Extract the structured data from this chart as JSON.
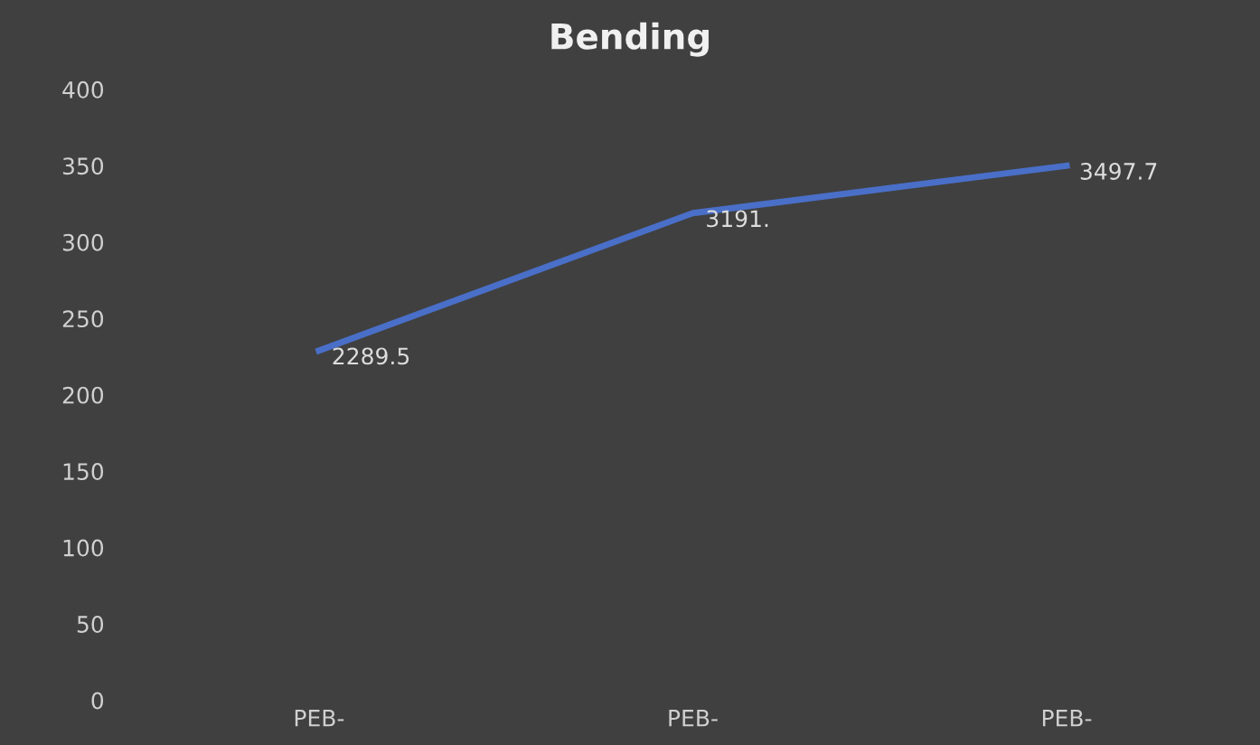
{
  "chart_data": {
    "type": "line",
    "title": "Bending",
    "categories": [
      "PEB-",
      "PEB-",
      "PEB-"
    ],
    "series": [
      {
        "color": "#4a6fc8",
        "values": [
          229,
          319,
          350
        ]
      }
    ],
    "annotations": [
      "2289.5",
      "3191.",
      "3497.7"
    ],
    "ylim": [
      0,
      400
    ],
    "yticks": [
      0,
      50,
      100,
      150,
      200,
      250,
      300,
      350,
      400
    ],
    "grid": false,
    "legend": false,
    "marker": "none",
    "line_style": "solid"
  }
}
